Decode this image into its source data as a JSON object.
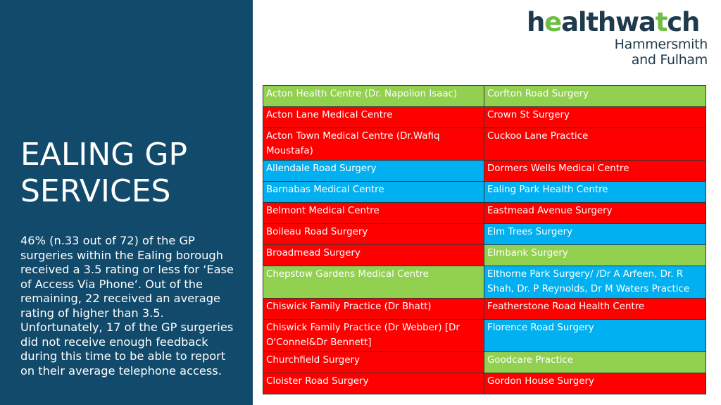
{
  "logo": {
    "word": "healthwatch",
    "line1": "Hammersmith",
    "line2": "and Fulham",
    "colors": {
      "dark": "#1f3a4d",
      "accent": "#6dbe45"
    }
  },
  "panel": {
    "title_line1": "EALING GP",
    "title_line2": "SERVICES",
    "body": "46% (n.33 out of 72) of the GP surgeries within the Ealing borough received a 3.5 rating or less for ‘Ease of Access Via Phone‘. Out of the remaining, 22 received an average rating of higher than 3.5. Unfortunately, 17 of the GP surgeries did not receive enough feedback during this time to be able to report on their average telephone access.",
    "color": "#124a6b"
  },
  "status_colors": {
    "green": "#92d050",
    "red": "#ff0000",
    "blue": "#00b0f0"
  },
  "rows": [
    {
      "left": {
        "text": "Acton Health Centre (Dr. Napolion Isaac)",
        "status": "green"
      },
      "right": {
        "text": "Corfton Road Surgery",
        "status": "green"
      }
    },
    {
      "left": {
        "text": "Acton Lane Medical Centre",
        "status": "red"
      },
      "right": {
        "text": "Crown St Surgery",
        "status": "red"
      }
    },
    {
      "left": {
        "text": "Acton Town Medical Centre (Dr.Wafiq Moustafa)",
        "status": "red"
      },
      "right": {
        "text": "Cuckoo Lane Practice",
        "status": "red"
      }
    },
    {
      "left": {
        "text": "Allendale Road Surgery",
        "status": "blue"
      },
      "right": {
        "text": "Dormers Wells Medical Centre",
        "status": "red"
      }
    },
    {
      "left": {
        "text": "Barnabas Medical Centre",
        "status": "blue"
      },
      "right": {
        "text": "Ealing Park Health Centre",
        "status": "blue"
      }
    },
    {
      "left": {
        "text": "Belmont Medical Centre",
        "status": "red"
      },
      "right": {
        "text": "Eastmead Avenue Surgery",
        "status": "red"
      }
    },
    {
      "left": {
        "text": "Boileau Road Surgery",
        "status": "red"
      },
      "right": {
        "text": "Elm Trees Surgery",
        "status": "blue"
      }
    },
    {
      "left": {
        "text": "Broadmead Surgery",
        "status": "red"
      },
      "right": {
        "text": "Elmbank Surgery",
        "status": "green"
      }
    },
    {
      "left": {
        "text": "Chepstow Gardens Medical Centre",
        "status": "green"
      },
      "right": {
        "text": "Elthorne Park Surgery/ /Dr A Arfeen, Dr. R Shah, Dr. P Reynolds, Dr M Waters Practice",
        "status": "blue"
      }
    },
    {
      "left": {
        "text": "Chiswick Family Practice (Dr Bhatt)",
        "status": "red"
      },
      "right": {
        "text": "Featherstone Road Health Centre",
        "status": "red"
      }
    },
    {
      "left": {
        "text": "Chiswick Family Practice (Dr Webber) [Dr O'Connel&Dr Bennett]",
        "status": "red"
      },
      "right": {
        "text": "Florence Road Surgery",
        "status": "blue"
      }
    },
    {
      "left": {
        "text": "Churchfield Surgery",
        "status": "red"
      },
      "right": {
        "text": "Goodcare Practice",
        "status": "green"
      }
    },
    {
      "left": {
        "text": "Cloister Road Surgery",
        "status": "red"
      },
      "right": {
        "text": "Gordon House Surgery",
        "status": "red"
      }
    }
  ]
}
